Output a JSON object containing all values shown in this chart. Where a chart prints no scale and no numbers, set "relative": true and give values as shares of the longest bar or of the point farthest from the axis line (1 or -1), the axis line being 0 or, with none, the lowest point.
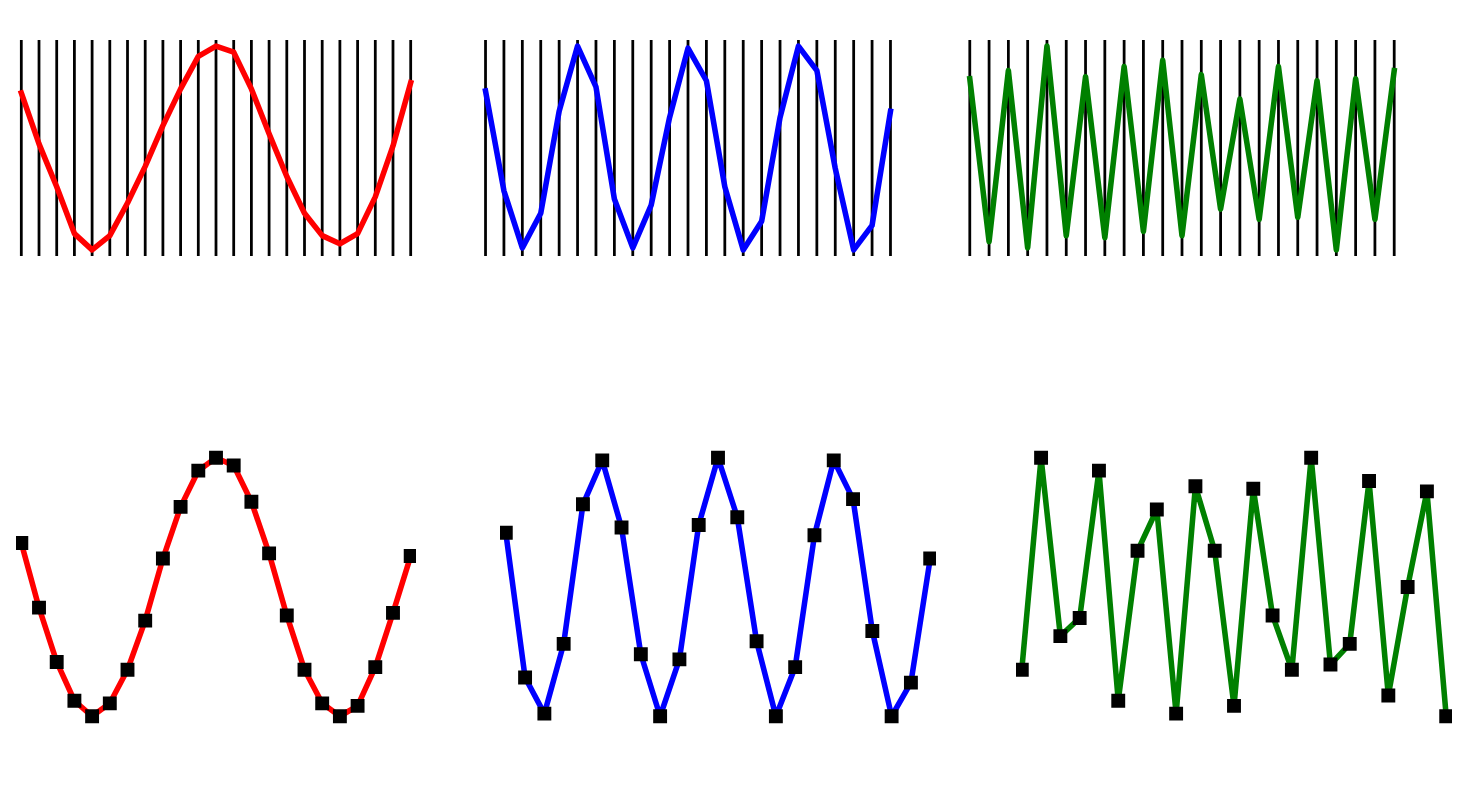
{
  "chart_data": [
    {
      "type": "line",
      "relative": true,
      "color": "#ff0000",
      "grid": "x",
      "marker": "none",
      "categories": [
        null,
        null,
        null,
        null,
        null,
        null,
        null,
        null,
        null,
        null,
        null,
        null,
        null,
        null,
        null,
        null,
        null,
        null,
        null,
        null,
        null,
        null,
        null
      ],
      "values": [
        0.77,
        0.52,
        0.31,
        0.08,
        0,
        0.07,
        0.23,
        0.41,
        0.61,
        0.79,
        0.95,
        1,
        0.97,
        0.79,
        0.57,
        0.36,
        0.18,
        0.07,
        0.03,
        0.08,
        0.26,
        0.51,
        0.82
      ]
    },
    {
      "type": "line",
      "relative": true,
      "color": "#0000ff",
      "grid": "x",
      "marker": "none",
      "categories": [
        null,
        null,
        null,
        null,
        null,
        null,
        null,
        null,
        null,
        null,
        null,
        null,
        null,
        null,
        null,
        null,
        null,
        null,
        null,
        null,
        null,
        null,
        null
      ],
      "values": [
        0.78,
        0.29,
        0.01,
        0.18,
        0.68,
        1,
        0.8,
        0.25,
        0.01,
        0.22,
        0.65,
        0.99,
        0.83,
        0.31,
        0,
        0.14,
        0.65,
        1,
        0.88,
        0.4,
        0,
        0.12,
        0.68
      ]
    },
    {
      "type": "line",
      "relative": true,
      "color": "#008000",
      "grid": "x",
      "marker": "none",
      "categories": [
        null,
        null,
        null,
        null,
        null,
        null,
        null,
        null,
        null,
        null,
        null,
        null,
        null,
        null,
        null,
        null,
        null,
        null,
        null,
        null,
        null,
        null,
        null
      ],
      "values": [
        0.84,
        0.04,
        0.88,
        0.01,
        1,
        0.07,
        0.85,
        0.06,
        0.9,
        0.09,
        0.93,
        0.07,
        0.86,
        0.2,
        0.74,
        0.15,
        0.9,
        0.16,
        0.83,
        0,
        0.84,
        0.15,
        0.88
      ]
    },
    {
      "type": "line",
      "relative": true,
      "color": "#ff0000",
      "marker": "square",
      "categories": [
        null,
        null,
        null,
        null,
        null,
        null,
        null,
        null,
        null,
        null,
        null,
        null,
        null,
        null,
        null,
        null,
        null,
        null,
        null,
        null,
        null,
        null,
        null
      ],
      "values": [
        0.67,
        0.42,
        0.21,
        0.06,
        0,
        0.05,
        0.18,
        0.37,
        0.61,
        0.81,
        0.95,
        1,
        0.97,
        0.83,
        0.63,
        0.39,
        0.18,
        0.05,
        0,
        0.04,
        0.19,
        0.4,
        0.62
      ]
    },
    {
      "type": "line",
      "relative": true,
      "color": "#0000ff",
      "marker": "square",
      "categories": [
        null,
        null,
        null,
        null,
        null,
        null,
        null,
        null,
        null,
        null,
        null,
        null,
        null,
        null,
        null,
        null,
        null,
        null,
        null,
        null,
        null,
        null,
        null
      ],
      "values": [
        0.71,
        0.15,
        0.01,
        0.28,
        0.82,
        0.99,
        0.73,
        0.24,
        0,
        0.22,
        0.74,
        1,
        0.77,
        0.29,
        0,
        0.19,
        0.7,
        0.99,
        0.84,
        0.33,
        0,
        0.13,
        0.61
      ]
    },
    {
      "type": "line",
      "relative": true,
      "color": "#008000",
      "marker": "square",
      "categories": [
        null,
        null,
        null,
        null,
        null,
        null,
        null,
        null,
        null,
        null,
        null,
        null,
        null,
        null,
        null,
        null,
        null,
        null,
        null,
        null,
        null,
        null,
        null
      ],
      "values": [
        0.18,
        1,
        0.31,
        0.38,
        0.95,
        0.06,
        0.64,
        0.8,
        0.01,
        0.89,
        0.64,
        0.04,
        0.88,
        0.39,
        0.18,
        1,
        0.2,
        0.28,
        0.91,
        0.08,
        0.5,
        0.87,
        0
      ]
    }
  ]
}
